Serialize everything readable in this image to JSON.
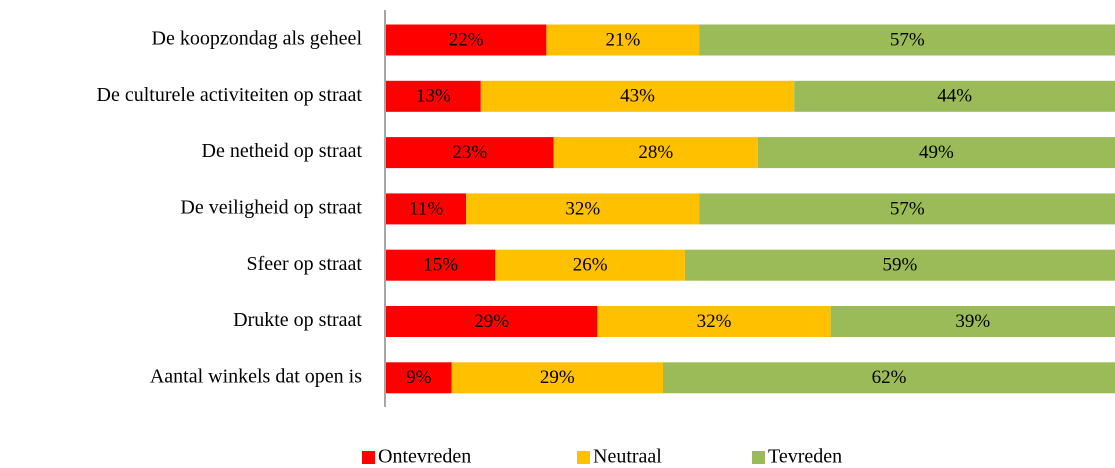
{
  "chart_data": {
    "type": "stacked-bar-horizontal",
    "categories": [
      "De koopzondag als geheel",
      "De culturele activiteiten op straat",
      "De netheid op straat",
      "De veiligheid op straat",
      "Sfeer op straat",
      "Drukte op straat",
      "Aantal winkels dat open is"
    ],
    "series": [
      {
        "name": "Ontevreden",
        "color": "#ff0000",
        "values": [
          22,
          13,
          23,
          11,
          15,
          29,
          9
        ],
        "value_labels": [
          "22%",
          "13%",
          "23%",
          "11%",
          "15%",
          "29%",
          "9%"
        ]
      },
      {
        "name": "Neutraal",
        "color": "#ffc000",
        "values": [
          21,
          43,
          28,
          32,
          26,
          32,
          29
        ],
        "value_labels": [
          "21%",
          "43%",
          "28%",
          "32%",
          "26%",
          "32%",
          "29%"
        ]
      },
      {
        "name": "Tevreden",
        "color": "#9bbb59",
        "values": [
          57,
          44,
          49,
          57,
          59,
          39,
          62
        ],
        "value_labels": [
          "57%",
          "44%",
          "49%",
          "57%",
          "59%",
          "39%",
          "62%"
        ]
      }
    ],
    "xlim": [
      0,
      100
    ],
    "legend": "bottom"
  }
}
